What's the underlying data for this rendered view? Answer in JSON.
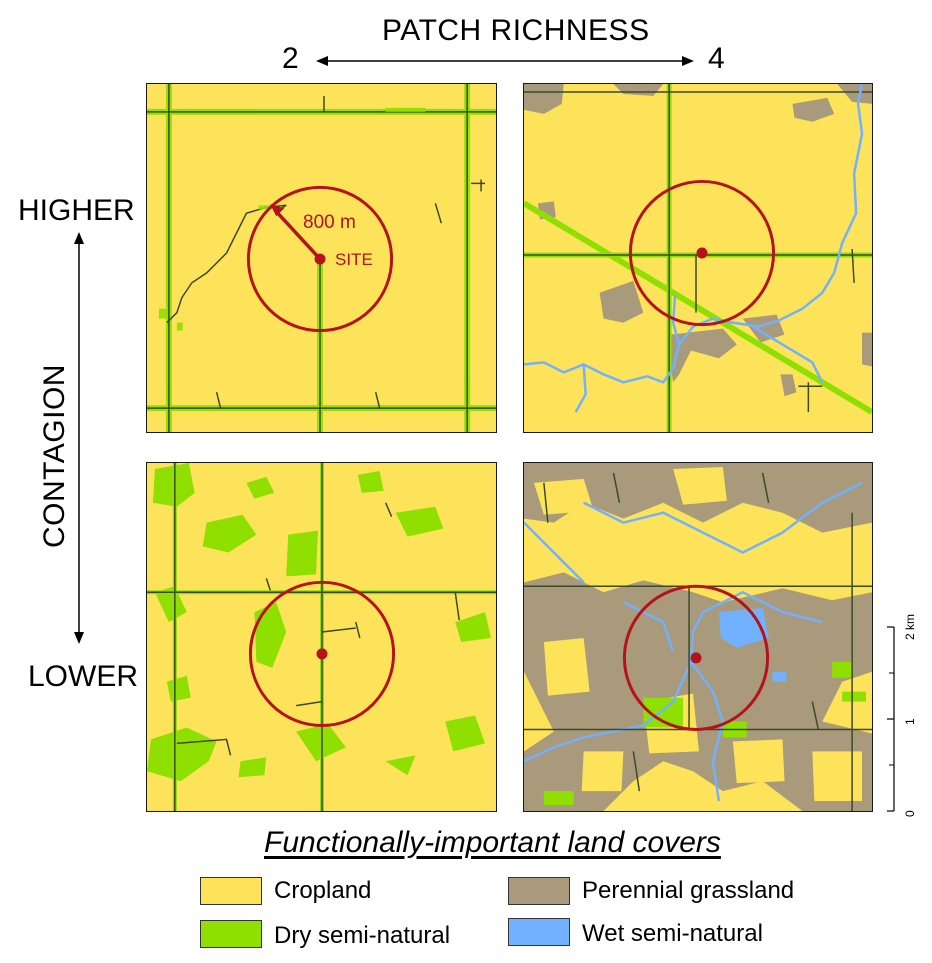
{
  "header": {
    "title": "PATCH RICHNESS",
    "left_value": "2",
    "right_value": "4"
  },
  "side": {
    "title": "CONTAGION",
    "top_label": "HIGHER",
    "bottom_label": "LOWER"
  },
  "annotations": {
    "radius_label": "800 m",
    "site_label": "SITE"
  },
  "scale_bar": {
    "unit": "2 km",
    "ticks": [
      "0",
      "1",
      "2"
    ]
  },
  "legend": {
    "title": "Functionally-important land covers",
    "items": [
      {
        "label": "Cropland",
        "color": "#fde359"
      },
      {
        "label": "Dry semi-natural",
        "color": "#8fe000"
      },
      {
        "label": "Perennial grassland",
        "color": "#a89a7a"
      },
      {
        "label": "Wet semi-natural",
        "color": "#72b1ff"
      }
    ]
  },
  "colors": {
    "cropland": "#fde359",
    "dry": "#8fe000",
    "grass": "#a89a7a",
    "wet": "#72b1ff",
    "road": "#3c4a2a",
    "circle": "#b5121b"
  }
}
